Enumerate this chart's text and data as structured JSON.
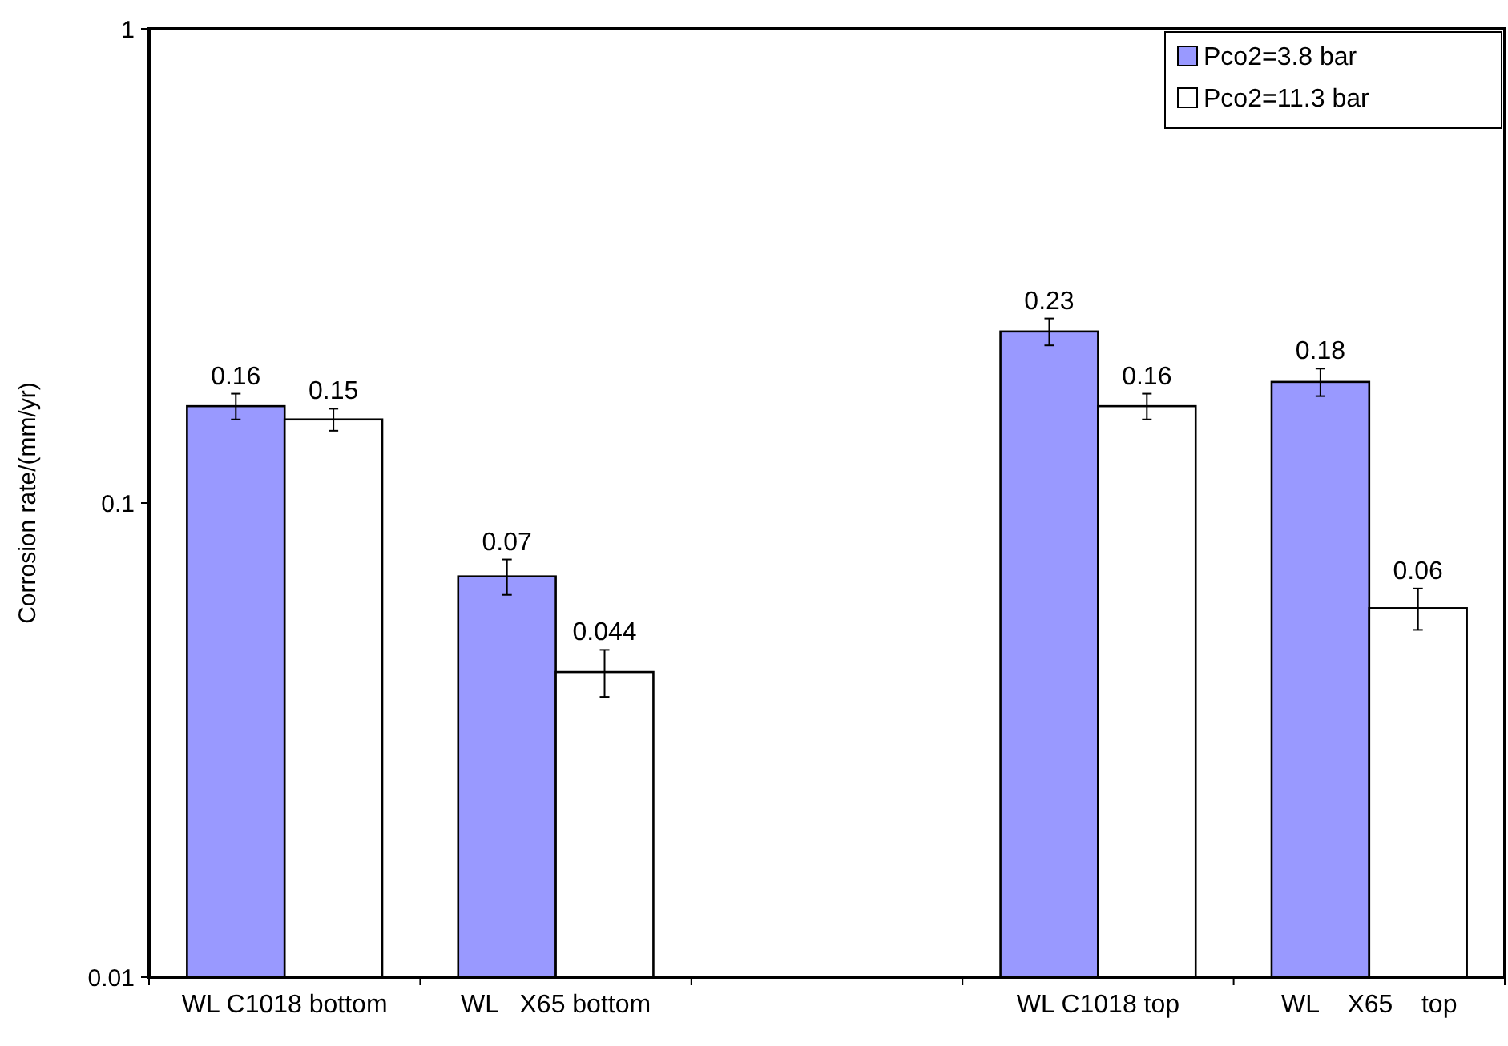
{
  "chart_data": {
    "type": "bar",
    "ylabel": "Corrosion rate/(mm/yr)",
    "log": true,
    "ylim": [
      0.01,
      1
    ],
    "yticks": [
      0.01,
      0.1,
      1
    ],
    "grid": false,
    "legend": "top right",
    "data_labels": true,
    "categories": [
      "WL C1018 bottom",
      "WL   X65 bottom",
      null,
      "WL C1018 top",
      "WL    X65    top"
    ],
    "series": [
      {
        "name": "Pco2=3.8 bar",
        "color": "#9999ff",
        "values": [
          0.16,
          0.07,
          null,
          0.23,
          0.18
        ],
        "errors": [
          0.01,
          0.006,
          null,
          0.015,
          0.012
        ]
      },
      {
        "name": "Pco2=11.3 bar",
        "color": "#ffffff",
        "values": [
          0.15,
          0.044,
          null,
          0.16,
          0.06
        ],
        "errors": [
          0.008,
          0.005,
          null,
          0.01,
          0.006
        ]
      }
    ]
  }
}
